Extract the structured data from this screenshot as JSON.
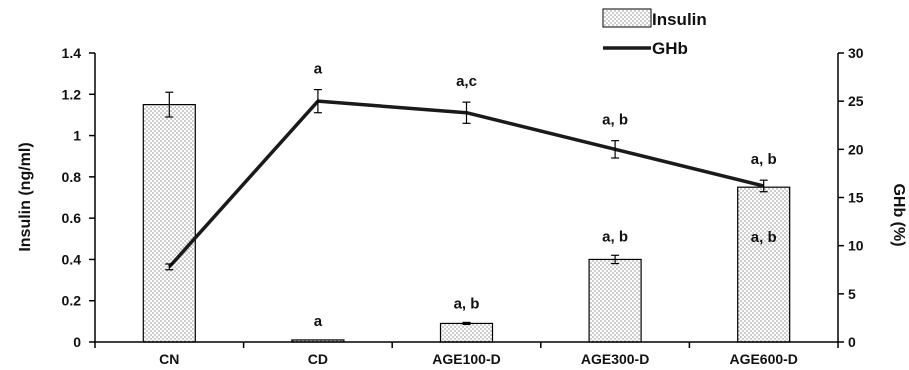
{
  "chart_data": {
    "type": "bar",
    "categories": [
      "CN",
      "CD",
      "AGE100-D",
      "AGE300-D",
      "AGE600-D"
    ],
    "series": [
      {
        "name": "Insulin",
        "kind": "bar",
        "axis": "left",
        "values": [
          1.15,
          0.01,
          0.09,
          0.4,
          0.75
        ],
        "errors": [
          0.06,
          0.0,
          0.005,
          0.02,
          0.0
        ],
        "annotations": [
          "",
          "a",
          "a, b",
          "a, b",
          "a, b"
        ]
      },
      {
        "name": "GHb",
        "kind": "line",
        "axis": "right",
        "values": [
          7.8,
          25.0,
          23.8,
          20.0,
          16.2
        ],
        "errors": [
          0.3,
          1.2,
          1.1,
          0.9,
          0.6
        ],
        "annotations": [
          "",
          "a",
          "a,c",
          "a, b",
          "a, b"
        ]
      }
    ],
    "ylabel": "Insulin (ng/ml)",
    "y2label": "GHb (%)",
    "ylim": [
      0,
      1.4
    ],
    "y2lim": [
      0,
      30
    ],
    "yticks": [
      "0",
      "0.2",
      "0.4",
      "0.6",
      "0.8",
      "1",
      "1.2",
      "1.4"
    ],
    "y2ticks": [
      "0",
      "5",
      "10",
      "15",
      "20",
      "25",
      "30"
    ],
    "grid": false,
    "legend_position": "top-right"
  }
}
